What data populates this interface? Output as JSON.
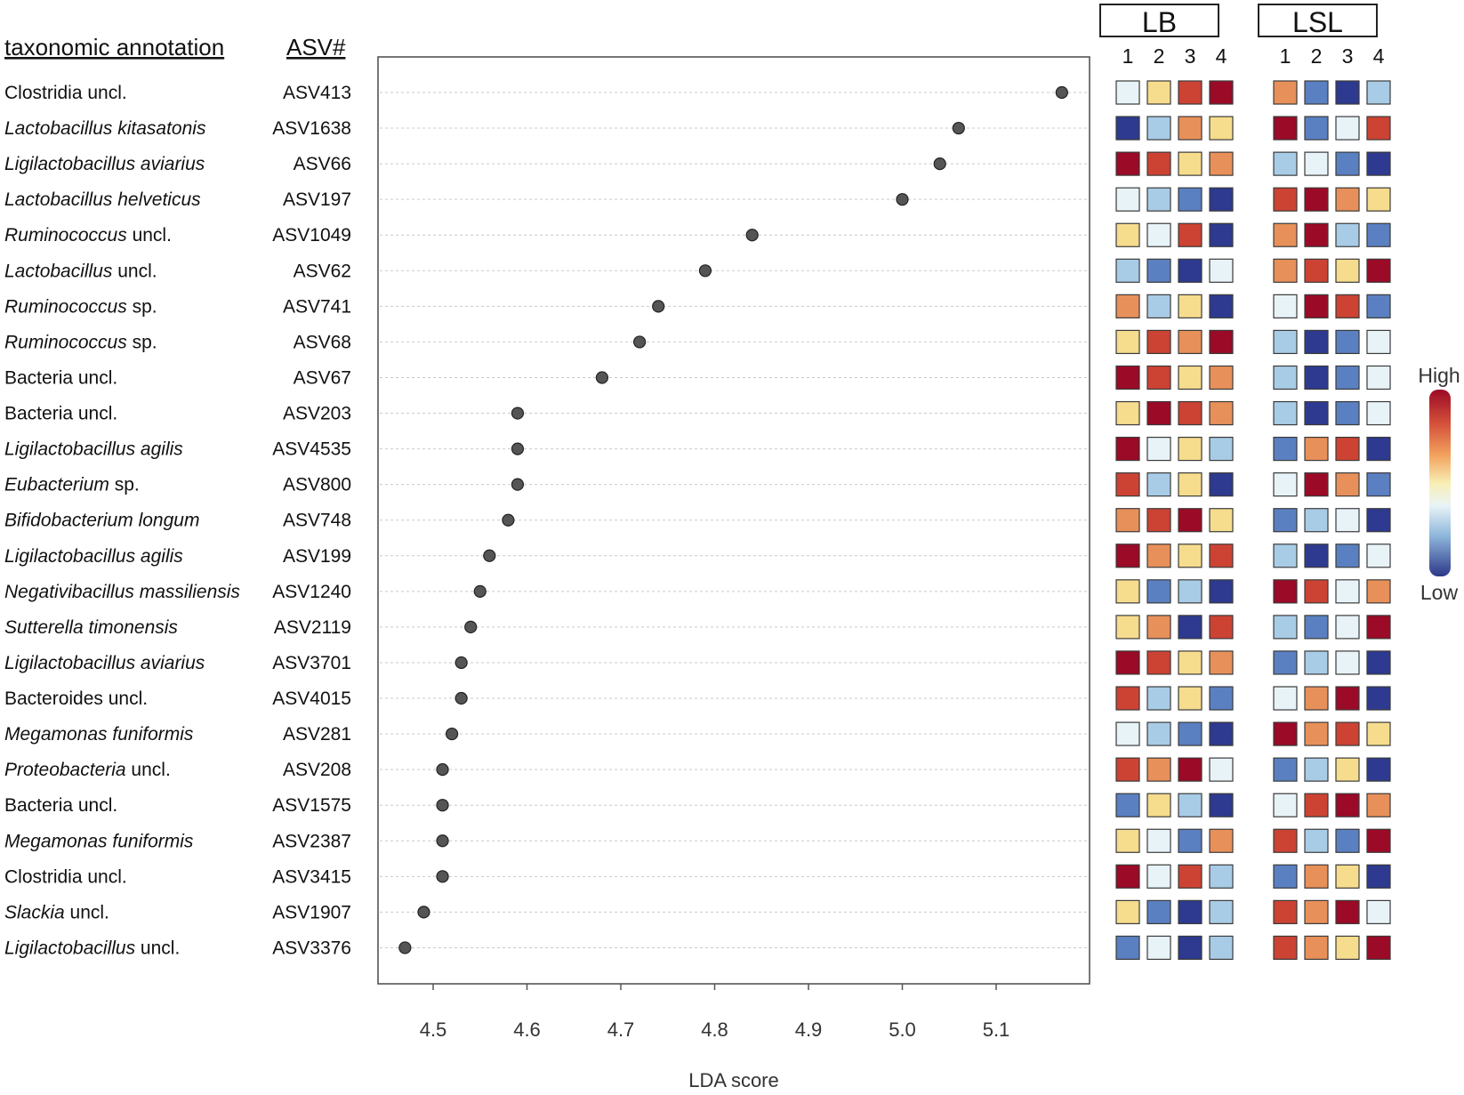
{
  "headers": {
    "taxonomy": "taxonomic annotation",
    "asv": "ASV#"
  },
  "heatmap": {
    "groups": [
      "LB",
      "LSL"
    ],
    "columns": [
      "1",
      "2",
      "3",
      "4"
    ],
    "legend": {
      "high": "High",
      "low": "Low"
    },
    "palette": {
      "1": "#2e3a8f",
      "2": "#5a80c1",
      "3": "#a9cce6",
      "4": "#e8f3f8",
      "5": "#f6dc8d",
      "6": "#e8905a",
      "7": "#cc4333",
      "8": "#9b0a26"
    }
  },
  "chart_data": {
    "type": "scatter",
    "xlabel": "LDA score",
    "xticks": [
      4.5,
      4.6,
      4.7,
      4.8,
      4.9,
      5.0,
      5.1
    ],
    "xtick_labels": [
      "4.5",
      "4.6",
      "4.7",
      "4.8",
      "4.9",
      "5.0",
      "5.1"
    ],
    "xlim": [
      4.44,
      5.19
    ],
    "rows": [
      {
        "tax": "Clostridia uncl.",
        "italic": false,
        "asv": "ASV413",
        "lda": 5.17,
        "lb": [
          4,
          5,
          7,
          8
        ],
        "lsl": [
          6,
          2,
          1,
          3
        ]
      },
      {
        "tax": "Lactobacillus kitasatonis",
        "italic": true,
        "asv": "ASV1638",
        "lda": 5.06,
        "lb": [
          1,
          3,
          6,
          5
        ],
        "lsl": [
          8,
          2,
          4,
          7
        ]
      },
      {
        "tax": "Ligilactobacillus aviarius",
        "italic": true,
        "asv": "ASV66",
        "lda": 5.04,
        "lb": [
          8,
          7,
          5,
          6
        ],
        "lsl": [
          3,
          4,
          2,
          1
        ]
      },
      {
        "tax": "Lactobacillus helveticus",
        "italic": true,
        "asv": "ASV197",
        "lda": 5.0,
        "lb": [
          4,
          3,
          2,
          1
        ],
        "lsl": [
          7,
          8,
          6,
          5
        ]
      },
      {
        "tax": "Ruminococcus",
        "rest": " uncl.",
        "italic": true,
        "asv": "ASV1049",
        "lda": 4.84,
        "lb": [
          5,
          4,
          7,
          1
        ],
        "lsl": [
          6,
          8,
          3,
          2
        ]
      },
      {
        "tax": "Lactobacillus",
        "rest": " uncl.",
        "italic": true,
        "asv": "ASV62",
        "lda": 4.79,
        "lb": [
          3,
          2,
          1,
          4
        ],
        "lsl": [
          6,
          7,
          5,
          8
        ]
      },
      {
        "tax": "Ruminococcus",
        "rest": " sp.",
        "italic": true,
        "asv": "ASV741",
        "lda": 4.74,
        "lb": [
          6,
          3,
          5,
          1
        ],
        "lsl": [
          4,
          8,
          7,
          2
        ]
      },
      {
        "tax": "Ruminococcus",
        "rest": " sp.",
        "italic": true,
        "asv": "ASV68",
        "lda": 4.72,
        "lb": [
          5,
          7,
          6,
          8
        ],
        "lsl": [
          3,
          1,
          2,
          4
        ]
      },
      {
        "tax": "Bacteria uncl.",
        "italic": false,
        "asv": "ASV67",
        "lda": 4.68,
        "lb": [
          8,
          7,
          5,
          6
        ],
        "lsl": [
          3,
          1,
          2,
          4
        ]
      },
      {
        "tax": "Bacteria uncl.",
        "italic": false,
        "asv": "ASV203",
        "lda": 4.59,
        "lb": [
          5,
          8,
          7,
          6
        ],
        "lsl": [
          3,
          1,
          2,
          4
        ]
      },
      {
        "tax": "Ligilactobacillus agilis",
        "italic": true,
        "asv": "ASV4535",
        "lda": 4.59,
        "lb": [
          8,
          4,
          5,
          3
        ],
        "lsl": [
          2,
          6,
          7,
          1
        ]
      },
      {
        "tax": "Eubacterium",
        "rest": " sp.",
        "italic": true,
        "asv": "ASV800",
        "lda": 4.59,
        "lb": [
          7,
          3,
          5,
          1
        ],
        "lsl": [
          4,
          8,
          6,
          2
        ]
      },
      {
        "tax": "Bifidobacterium longum",
        "italic": true,
        "asv": "ASV748",
        "lda": 4.58,
        "lb": [
          6,
          7,
          8,
          5
        ],
        "lsl": [
          2,
          3,
          4,
          1
        ]
      },
      {
        "tax": "Ligilactobacillus agilis",
        "italic": true,
        "asv": "ASV199",
        "lda": 4.56,
        "lb": [
          8,
          6,
          5,
          7
        ],
        "lsl": [
          3,
          1,
          2,
          4
        ]
      },
      {
        "tax": "Negativibacillus massiliensis",
        "italic": true,
        "asv": "ASV1240",
        "lda": 4.55,
        "lb": [
          5,
          2,
          3,
          1
        ],
        "lsl": [
          8,
          7,
          4,
          6
        ]
      },
      {
        "tax": "Sutterella timonensis",
        "italic": true,
        "asv": "ASV2119",
        "lda": 4.54,
        "lb": [
          5,
          6,
          1,
          7
        ],
        "lsl": [
          3,
          2,
          4,
          8
        ]
      },
      {
        "tax": "Ligilactobacillus aviarius",
        "italic": true,
        "asv": "ASV3701",
        "lda": 4.53,
        "lb": [
          8,
          7,
          5,
          6
        ],
        "lsl": [
          2,
          3,
          4,
          1
        ]
      },
      {
        "tax": "Bacteroides uncl.",
        "italic": false,
        "asv": "ASV4015",
        "lda": 4.53,
        "lb": [
          7,
          3,
          5,
          2
        ],
        "lsl": [
          4,
          6,
          8,
          1
        ]
      },
      {
        "tax": "Megamonas funiformis",
        "italic": true,
        "asv": "ASV281",
        "lda": 4.52,
        "lb": [
          4,
          3,
          2,
          1
        ],
        "lsl": [
          8,
          6,
          7,
          5
        ]
      },
      {
        "tax": "Proteobacteria",
        "rest": " uncl.",
        "italic": true,
        "asv": "ASV208",
        "lda": 4.51,
        "lb": [
          7,
          6,
          8,
          4
        ],
        "lsl": [
          2,
          3,
          5,
          1
        ]
      },
      {
        "tax": "Bacteria uncl.",
        "italic": false,
        "asv": "ASV1575",
        "lda": 4.51,
        "lb": [
          2,
          5,
          3,
          1
        ],
        "lsl": [
          4,
          7,
          8,
          6
        ]
      },
      {
        "tax": "Megamonas funiformis",
        "italic": true,
        "asv": "ASV2387",
        "lda": 4.51,
        "lb": [
          5,
          4,
          2,
          6
        ],
        "lsl": [
          7,
          3,
          2,
          8
        ]
      },
      {
        "tax": "Clostridia uncl.",
        "italic": false,
        "asv": "ASV3415",
        "lda": 4.51,
        "lb": [
          8,
          4,
          7,
          3
        ],
        "lsl": [
          2,
          6,
          5,
          1
        ]
      },
      {
        "tax": "Slackia",
        "rest": " uncl.",
        "italic": true,
        "asv": "ASV1907",
        "lda": 4.49,
        "lb": [
          5,
          2,
          1,
          3
        ],
        "lsl": [
          7,
          6,
          8,
          4
        ]
      },
      {
        "tax": "Ligilactobacillus",
        "rest": " uncl.",
        "italic": true,
        "asv": "ASV3376",
        "lda": 4.47,
        "lb": [
          2,
          4,
          1,
          3
        ],
        "lsl": [
          7,
          6,
          5,
          8
        ]
      }
    ]
  }
}
